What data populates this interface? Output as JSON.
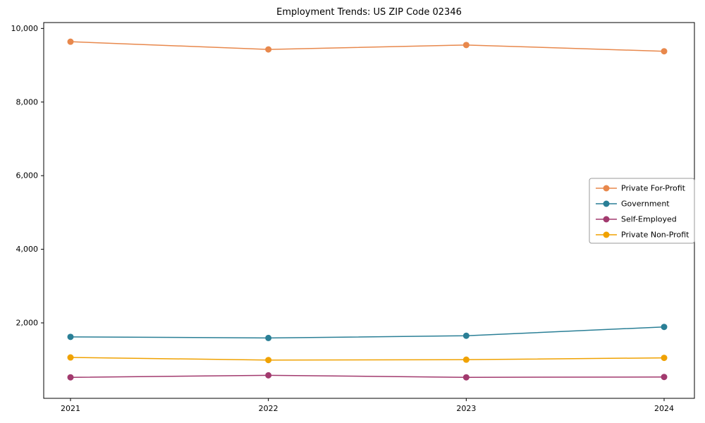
{
  "chart_data": {
    "type": "line",
    "title": "Employment Trends: US ZIP Code 02346",
    "xlabel": "",
    "ylabel": "",
    "x": [
      2021,
      2022,
      2023,
      2024
    ],
    "series": [
      {
        "name": "Private For-Profit",
        "color": "#e8884c",
        "values": [
          9640,
          9430,
          9550,
          9380
        ]
      },
      {
        "name": "Government",
        "color": "#2a7f96",
        "values": [
          1620,
          1590,
          1650,
          1890
        ]
      },
      {
        "name": "Self-Employed",
        "color": "#a23a6e",
        "values": [
          520,
          575,
          520,
          530
        ]
      },
      {
        "name": "Private Non-Profit",
        "color": "#f0a202",
        "values": [
          1060,
          990,
          1000,
          1050
        ]
      }
    ],
    "ylim": [
      -50,
      10160
    ],
    "yticks": [
      2000,
      4000,
      6000,
      8000,
      10000
    ],
    "ytick_labels": [
      "2,000",
      "4,000",
      "6,000",
      "8,000",
      "10,000"
    ],
    "xtick_labels": [
      "2021",
      "2022",
      "2023",
      "2024"
    ],
    "grid": false,
    "legend_position": "center right"
  }
}
